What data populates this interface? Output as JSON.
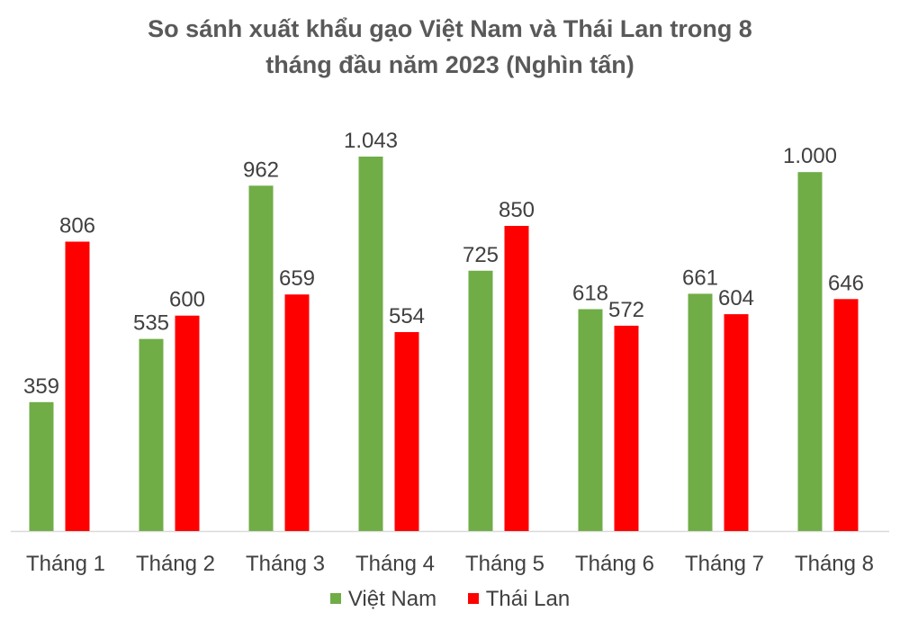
{
  "chart_data": {
    "type": "bar",
    "title_lines": [
      "So sánh xuất khẩu gạo Việt Nam và Thái Lan trong 8",
      "tháng đầu năm 2023 (Nghìn tấn)"
    ],
    "categories": [
      "Tháng 1",
      "Tháng 2",
      "Tháng 3",
      "Tháng 4",
      "Tháng 5",
      "Tháng 6",
      "Tháng 7",
      "Tháng 8"
    ],
    "series": [
      {
        "name": "Việt Nam",
        "color": "#70ad47",
        "values": [
          359,
          535,
          962,
          1043,
          725,
          618,
          661,
          1000
        ],
        "labels": [
          "359",
          "535",
          "962",
          "1.043",
          "725",
          "618",
          "661",
          "1.000"
        ]
      },
      {
        "name": "Thái Lan",
        "color": "#ff0000",
        "values": [
          806,
          600,
          659,
          554,
          850,
          572,
          604,
          646
        ],
        "labels": [
          "806",
          "600",
          "659",
          "554",
          "850",
          "572",
          "604",
          "646"
        ]
      }
    ],
    "ylim": [
      0,
      1043
    ],
    "grid": false,
    "legend_position": "bottom"
  }
}
